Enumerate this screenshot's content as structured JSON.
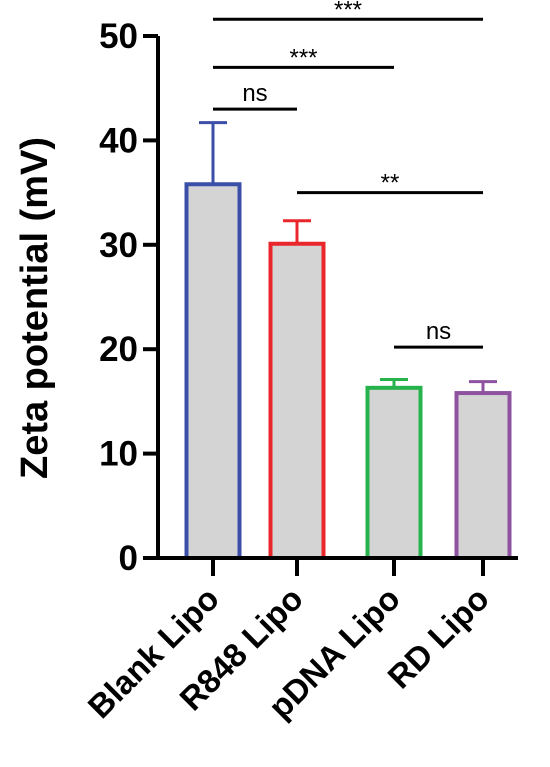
{
  "chart_data": {
    "type": "bar",
    "title": "",
    "xlabel": "",
    "ylabel": "Zeta potential (mV)",
    "ylim": [
      0,
      50
    ],
    "yticks": [
      0,
      10,
      20,
      30,
      40,
      50
    ],
    "grid": false,
    "categories": [
      "Blank Lipo",
      "R848 Lipo",
      "pDNA Lipo",
      "RD Lipo"
    ],
    "values": [
      35.8,
      30.1,
      16.3,
      15.8
    ],
    "errors": [
      5.9,
      2.2,
      0.8,
      1.1
    ],
    "bar_fill": "#d4d4d4",
    "bar_edge_colors": [
      "#3b4fa8",
      "#e8262b",
      "#27b34b",
      "#8e52a1"
    ],
    "significance": [
      {
        "from": 0,
        "to": 3,
        "label": "***",
        "y": 51.6
      },
      {
        "from": 0,
        "to": 2,
        "label": "***",
        "y": 47.0
      },
      {
        "from": 0,
        "to": 1,
        "label": "ns",
        "y": 43.0
      },
      {
        "from": 1,
        "to": 3,
        "label": "**",
        "y": 35.0
      },
      {
        "from": 2,
        "to": 3,
        "label": "ns",
        "y": 20.2
      }
    ]
  }
}
